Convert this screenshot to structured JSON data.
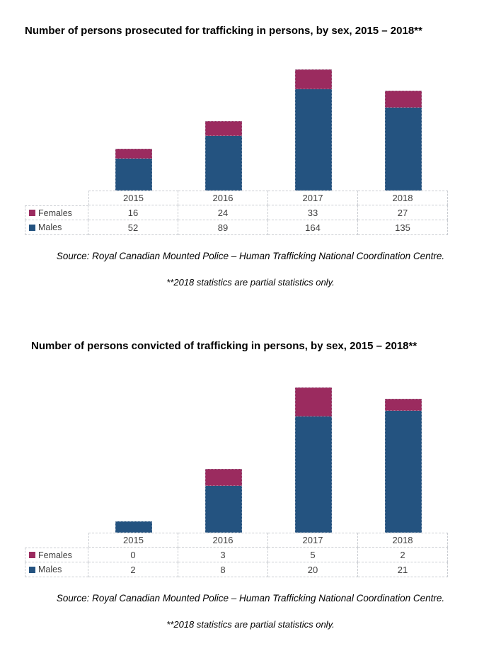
{
  "page": {
    "background": "#ffffff"
  },
  "colors": {
    "females": "#9B2B5F",
    "males": "#245380",
    "table_border": "#c9ccd1",
    "table_text": "#404040"
  },
  "chart_data": [
    {
      "type": "bar",
      "stacked": true,
      "title": "Number of persons prosecuted for trafficking in persons, by sex, 2015 – 2018**",
      "categories": [
        "2015",
        "2016",
        "2017",
        "2018"
      ],
      "series": [
        {
          "name": "Females",
          "values": [
            16,
            24,
            33,
            27
          ],
          "color": "#9B2B5F"
        },
        {
          "name": "Males",
          "values": [
            52,
            89,
            164,
            135
          ],
          "color": "#245380"
        }
      ],
      "stack_order_top_to_bottom": [
        "Females",
        "Males"
      ],
      "ylim": [
        0,
        200
      ],
      "grid": false,
      "legend_position": "data-table-left",
      "data_table": true,
      "source": "Source: Royal Canadian Mounted Police – Human Trafficking National Coordination Centre.",
      "note": "**2018 statistics are partial statistics only."
    },
    {
      "type": "bar",
      "stacked": true,
      "title": "Number of persons convicted of trafficking in persons, by sex, 2015 – 2018**",
      "categories": [
        "2015",
        "2016",
        "2017",
        "2018"
      ],
      "series": [
        {
          "name": "Females",
          "values": [
            0,
            3,
            5,
            2
          ],
          "color": "#9B2B5F"
        },
        {
          "name": "Males",
          "values": [
            2,
            8,
            20,
            21
          ],
          "color": "#245380"
        }
      ],
      "stack_order_top_to_bottom": [
        "Females",
        "Males"
      ],
      "ylim": [
        0,
        25
      ],
      "grid": false,
      "legend_position": "data-table-left",
      "data_table": true,
      "source": "Source: Royal Canadian Mounted Police – Human Trafficking National Coordination Centre.",
      "note": "**2018 statistics are partial statistics only."
    }
  ]
}
